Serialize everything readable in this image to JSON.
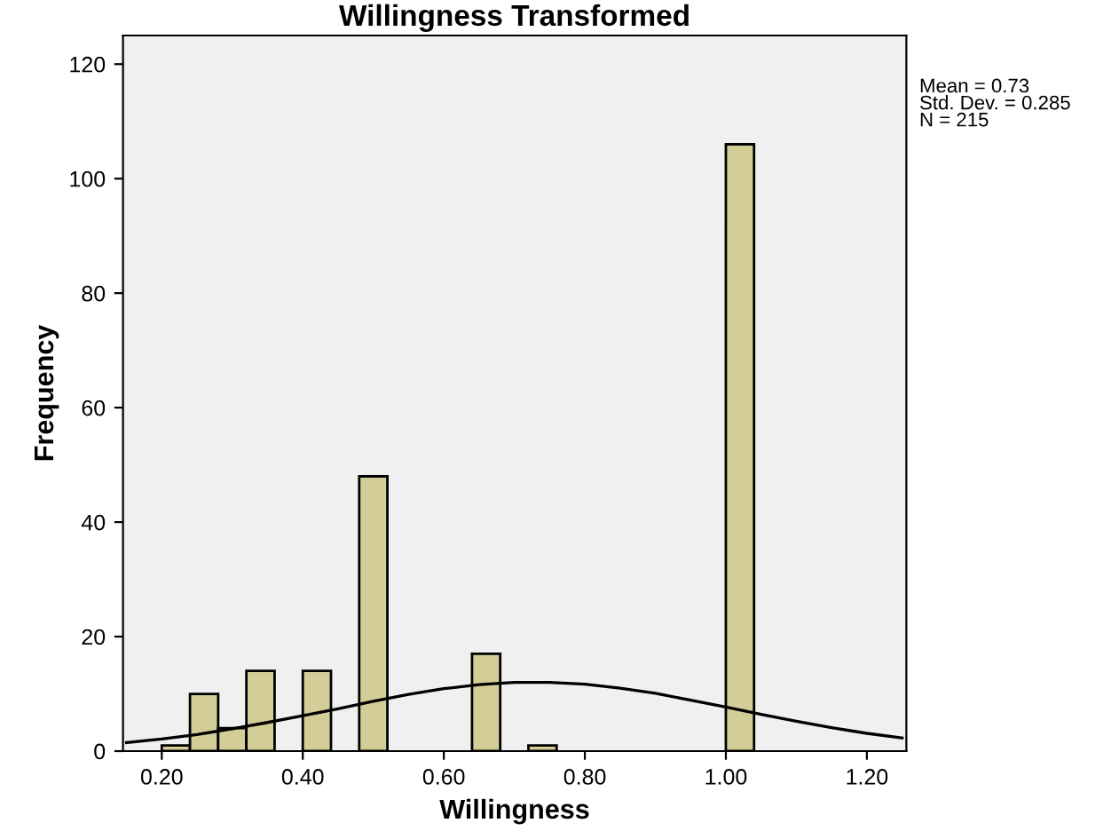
{
  "chart_data": {
    "type": "histogram",
    "title": "Willingness Transformed",
    "xlabel": "Willingness",
    "ylabel": "Frequency",
    "bins": [
      0.2,
      0.24,
      0.28,
      0.32,
      0.36,
      0.4,
      0.44,
      0.48,
      0.52,
      0.56,
      0.6,
      0.64,
      0.68,
      0.72,
      0.76,
      0.8,
      0.84,
      0.88,
      0.92,
      0.96,
      1.0,
      1.04
    ],
    "values": [
      1,
      10,
      4,
      14,
      0,
      14,
      0,
      48,
      0,
      0,
      0,
      17,
      0,
      1,
      0,
      0,
      0,
      0,
      0,
      0,
      106
    ],
    "color": "#d3ce97",
    "series": [
      {
        "type": "line",
        "color": "#000000",
        "x": [
          0.15,
          0.2,
          0.25,
          0.3,
          0.35,
          0.4,
          0.45,
          0.5,
          0.55,
          0.6,
          0.65,
          0.7,
          0.73,
          0.75,
          0.8,
          0.85,
          0.9,
          0.95,
          1.0,
          1.05,
          1.1,
          1.15,
          1.2,
          1.25
        ],
        "values": [
          1.5,
          2.1,
          2.9,
          3.9,
          5.0,
          6.2,
          7.4,
          8.7,
          9.9,
          10.9,
          11.6,
          12.0,
          12.0,
          12.0,
          11.7,
          11.0,
          10.1,
          8.9,
          7.7,
          6.4,
          5.2,
          4.1,
          3.1,
          2.3
        ]
      }
    ],
    "xlim": [
      0.145,
      1.256
    ],
    "ylim": [
      0,
      125
    ],
    "xticks": [
      {
        "value": 0.2,
        "label": "0.20"
      },
      {
        "value": 0.4,
        "label": "0.40"
      },
      {
        "value": 0.6,
        "label": "0.60"
      },
      {
        "value": 0.8,
        "label": "0.80"
      },
      {
        "value": 1.0,
        "label": "1.00"
      },
      {
        "value": 1.2,
        "label": "1.20"
      }
    ],
    "yticks": [
      0,
      20,
      40,
      60,
      80,
      100,
      120
    ],
    "annotations": [
      "Mean = 0.73\nStd. Dev. = 0.285\nN = 215"
    ],
    "grid": false,
    "legend": false
  }
}
